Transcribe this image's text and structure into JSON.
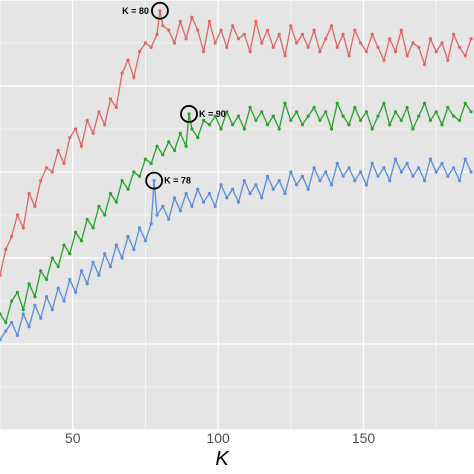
{
  "chart_data": {
    "type": "line",
    "title": "",
    "xlabel": "K",
    "ylabel": "",
    "xlim": [
      25,
      188
    ],
    "ylim": [
      0,
      1
    ],
    "x_ticks": [
      50,
      100,
      150
    ],
    "x_tick_labels": [
      "50",
      "100",
      "150"
    ],
    "grid": true,
    "legend": "none",
    "colors": {
      "panel": "#e5e5e5",
      "grid": "#ffffff",
      "red": "#e06666",
      "green": "#2ca02c",
      "blue": "#5b8ddb"
    },
    "series": [
      {
        "color": "#e06666",
        "x": [
          25,
          27,
          29,
          31,
          33,
          35,
          37,
          39,
          41,
          43,
          45,
          47,
          49,
          51,
          53,
          55,
          57,
          59,
          61,
          63,
          65,
          67,
          69,
          71,
          73,
          75,
          77,
          79,
          80,
          81,
          83,
          85,
          87,
          89,
          91,
          93,
          95,
          97,
          99,
          101,
          103,
          105,
          107,
          109,
          111,
          113,
          115,
          117,
          119,
          121,
          123,
          125,
          127,
          129,
          131,
          133,
          135,
          137,
          139,
          141,
          143,
          145,
          147,
          149,
          151,
          153,
          155,
          157,
          159,
          161,
          163,
          165,
          167,
          169,
          171,
          173,
          175,
          177,
          179,
          181,
          183,
          185,
          187
        ],
        "y": [
          0.36,
          0.42,
          0.45,
          0.5,
          0.47,
          0.55,
          0.52,
          0.58,
          0.61,
          0.6,
          0.65,
          0.62,
          0.68,
          0.7,
          0.66,
          0.72,
          0.69,
          0.74,
          0.71,
          0.77,
          0.75,
          0.83,
          0.86,
          0.82,
          0.88,
          0.9,
          0.89,
          0.92,
          0.975,
          0.94,
          0.93,
          0.9,
          0.95,
          0.91,
          0.96,
          0.93,
          0.88,
          0.95,
          0.9,
          0.93,
          0.89,
          0.94,
          0.91,
          0.92,
          0.88,
          0.95,
          0.9,
          0.93,
          0.89,
          0.92,
          0.87,
          0.94,
          0.9,
          0.92,
          0.89,
          0.93,
          0.88,
          0.91,
          0.94,
          0.89,
          0.92,
          0.87,
          0.93,
          0.9,
          0.88,
          0.92,
          0.89,
          0.86,
          0.91,
          0.88,
          0.93,
          0.87,
          0.9,
          0.89,
          0.85,
          0.91,
          0.88,
          0.9,
          0.86,
          0.92,
          0.89,
          0.87,
          0.91
        ]
      },
      {
        "color": "#2ca02c",
        "x": [
          25,
          27,
          29,
          31,
          33,
          35,
          37,
          39,
          41,
          43,
          45,
          47,
          49,
          51,
          53,
          55,
          57,
          59,
          61,
          63,
          65,
          67,
          69,
          71,
          73,
          75,
          77,
          79,
          81,
          83,
          85,
          87,
          89,
          90,
          91,
          93,
          95,
          97,
          99,
          101,
          103,
          105,
          107,
          109,
          111,
          113,
          115,
          117,
          119,
          121,
          123,
          125,
          127,
          129,
          131,
          133,
          135,
          137,
          139,
          141,
          143,
          145,
          147,
          149,
          151,
          153,
          155,
          157,
          159,
          161,
          163,
          165,
          167,
          169,
          171,
          173,
          175,
          177,
          179,
          181,
          183,
          185,
          187
        ],
        "y": [
          0.27,
          0.25,
          0.3,
          0.32,
          0.28,
          0.34,
          0.31,
          0.37,
          0.35,
          0.4,
          0.38,
          0.43,
          0.41,
          0.46,
          0.44,
          0.49,
          0.47,
          0.52,
          0.5,
          0.55,
          0.53,
          0.58,
          0.56,
          0.6,
          0.59,
          0.63,
          0.62,
          0.66,
          0.64,
          0.67,
          0.65,
          0.69,
          0.66,
          0.735,
          0.7,
          0.68,
          0.72,
          0.71,
          0.73,
          0.7,
          0.74,
          0.71,
          0.73,
          0.7,
          0.75,
          0.72,
          0.74,
          0.71,
          0.73,
          0.7,
          0.76,
          0.72,
          0.74,
          0.71,
          0.73,
          0.75,
          0.72,
          0.74,
          0.7,
          0.76,
          0.73,
          0.71,
          0.75,
          0.72,
          0.74,
          0.7,
          0.73,
          0.76,
          0.71,
          0.74,
          0.72,
          0.75,
          0.7,
          0.73,
          0.76,
          0.72,
          0.74,
          0.71,
          0.75,
          0.73,
          0.72,
          0.76,
          0.74
        ]
      },
      {
        "color": "#5b8ddb",
        "x": [
          25,
          27,
          29,
          31,
          33,
          35,
          37,
          39,
          41,
          43,
          45,
          47,
          49,
          51,
          53,
          55,
          57,
          59,
          61,
          63,
          65,
          67,
          69,
          71,
          73,
          75,
          77,
          78,
          79,
          81,
          83,
          85,
          87,
          89,
          91,
          93,
          95,
          97,
          99,
          101,
          103,
          105,
          107,
          109,
          111,
          113,
          115,
          117,
          119,
          121,
          123,
          125,
          127,
          129,
          131,
          133,
          135,
          137,
          139,
          141,
          143,
          145,
          147,
          149,
          151,
          153,
          155,
          157,
          159,
          161,
          163,
          165,
          167,
          169,
          171,
          173,
          175,
          177,
          179,
          181,
          183,
          185,
          187
        ],
        "y": [
          0.21,
          0.23,
          0.25,
          0.22,
          0.27,
          0.24,
          0.29,
          0.26,
          0.31,
          0.28,
          0.33,
          0.3,
          0.35,
          0.32,
          0.37,
          0.34,
          0.39,
          0.36,
          0.41,
          0.38,
          0.43,
          0.4,
          0.45,
          0.42,
          0.47,
          0.44,
          0.48,
          0.58,
          0.5,
          0.52,
          0.49,
          0.54,
          0.51,
          0.55,
          0.52,
          0.56,
          0.53,
          0.55,
          0.52,
          0.57,
          0.54,
          0.56,
          0.53,
          0.58,
          0.55,
          0.57,
          0.54,
          0.59,
          0.56,
          0.58,
          0.55,
          0.6,
          0.57,
          0.59,
          0.56,
          0.61,
          0.58,
          0.6,
          0.57,
          0.62,
          0.59,
          0.61,
          0.58,
          0.6,
          0.57,
          0.62,
          0.59,
          0.61,
          0.58,
          0.63,
          0.6,
          0.62,
          0.59,
          0.61,
          0.58,
          0.63,
          0.6,
          0.62,
          0.59,
          0.61,
          0.58,
          0.63,
          0.6
        ]
      }
    ],
    "annotations": [
      {
        "text": "K = 80",
        "x": 80,
        "y": 0.975,
        "color": "#e06666"
      },
      {
        "text": "K = 90",
        "x": 90,
        "y": 0.735,
        "color": "#2ca02c"
      },
      {
        "text": "K = 78",
        "x": 78,
        "y": 0.58,
        "color": "#5b8ddb"
      }
    ]
  }
}
